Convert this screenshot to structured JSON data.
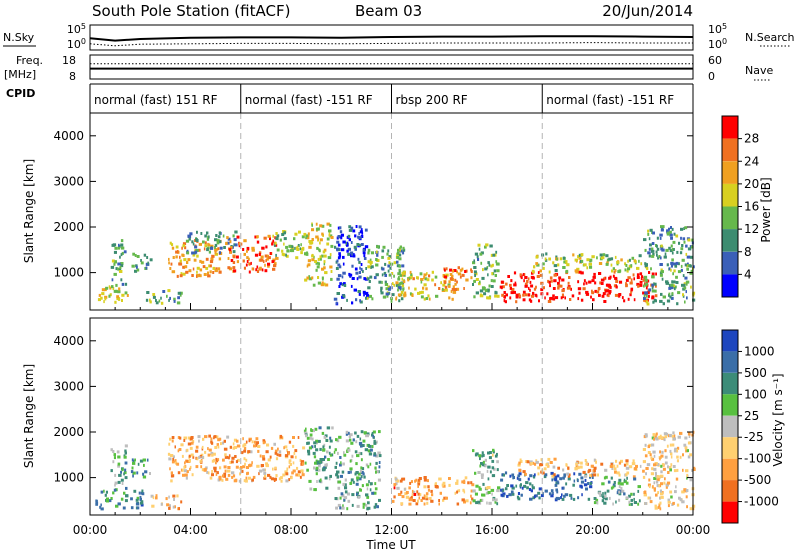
{
  "header": {
    "station": "South Pole Station (fitACF)",
    "beam": "Beam 03",
    "date": "20/Jun/2014"
  },
  "strip_labels": {
    "nsky": "N.Sky",
    "freq": "Freq.",
    "freq_unit": "[MHz]",
    "cpid": "CPID",
    "nsearch": "N.Search",
    "nave": "Nave"
  },
  "chart_data": [
    {
      "type": "line",
      "panel": "noise",
      "y_left_ticks": [
        "10^5",
        "10^0"
      ],
      "y_right_ticks": [
        "10^5",
        "10^0"
      ],
      "series": [
        {
          "name": "N.Sky",
          "style": "solid",
          "x": [
            0,
            1,
            2,
            4,
            6,
            8,
            10,
            12,
            14,
            16,
            18,
            20,
            22,
            24
          ],
          "y": [
            2.2,
            1.6,
            2.0,
            2.3,
            2.4,
            2.4,
            2.3,
            2.5,
            2.6,
            2.6,
            2.7,
            2.7,
            2.6,
            2.5
          ]
        },
        {
          "name": "N.Search",
          "style": "dotted",
          "x": [
            0,
            1,
            2,
            4,
            6,
            8,
            10,
            12,
            14,
            16,
            18,
            20,
            22,
            24
          ],
          "y": [
            0.8,
            0.3,
            0.7,
            0.8,
            0.9,
            0.9,
            0.8,
            0.9,
            1.0,
            1.0,
            1.0,
            1.1,
            1.0,
            1.0
          ]
        }
      ]
    },
    {
      "type": "line",
      "panel": "frequency",
      "y_left_ticks": [
        "18",
        "8"
      ],
      "y_right_ticks": [
        "60",
        "0"
      ],
      "series": [
        {
          "name": "Freq.",
          "style": "solid",
          "x": [
            0,
            24
          ],
          "y": [
            12.2,
            12.2
          ]
        },
        {
          "name": "Nave",
          "style": "dotted",
          "x": [
            0,
            24
          ],
          "y": [
            40,
            40
          ]
        }
      ]
    },
    {
      "type": "table",
      "panel": "cpid",
      "segments": [
        {
          "start": 0,
          "end": 6,
          "label": "normal (fast) 151 RF"
        },
        {
          "start": 6,
          "end": 12,
          "label": "normal (fast) -151 RF"
        },
        {
          "start": 12,
          "end": 18,
          "label": "rbsp 200 RF"
        },
        {
          "start": 18,
          "end": 24,
          "label": "normal (fast) -151 RF"
        }
      ]
    },
    {
      "type": "heatmap",
      "panel": "power",
      "ylabel": "Slant Range [km]",
      "ylim": [
        180,
        4500
      ],
      "yticks": [
        1000,
        2000,
        3000,
        4000
      ],
      "colorbar": {
        "label": "Power [dB]",
        "ticks": [
          "4",
          "8",
          "12",
          "16",
          "20",
          "24",
          "28"
        ],
        "colors": [
          "#0000ff",
          "#3a5fb8",
          "#3c8c70",
          "#66b84c",
          "#d8d020",
          "#f0a020",
          "#f07020",
          "#ff0000"
        ]
      },
      "regions": [
        {
          "t0": 0.2,
          "t1": 1.5,
          "r0": 300,
          "r1": 700,
          "level": 0.55
        },
        {
          "t0": 0.8,
          "t1": 1.4,
          "r0": 700,
          "r1": 1700,
          "level": 0.35
        },
        {
          "t0": 1.6,
          "t1": 2.4,
          "r0": 1000,
          "r1": 1400,
          "level": 0.35
        },
        {
          "t0": 2.2,
          "t1": 3.6,
          "r0": 300,
          "r1": 600,
          "level": 0.4
        },
        {
          "t0": 3.1,
          "t1": 5.2,
          "r0": 900,
          "r1": 1700,
          "level": 0.7
        },
        {
          "t0": 3.8,
          "t1": 5.8,
          "r0": 1400,
          "r1": 1900,
          "level": 0.3
        },
        {
          "t0": 5.3,
          "t1": 7.4,
          "r0": 1000,
          "r1": 1800,
          "level": 0.82
        },
        {
          "t0": 7.2,
          "t1": 8.5,
          "r0": 1300,
          "r1": 1950,
          "level": 0.45
        },
        {
          "t0": 8.5,
          "t1": 9.6,
          "r0": 700,
          "r1": 2100,
          "level": 0.55
        },
        {
          "t0": 9.7,
          "t1": 11.0,
          "r0": 300,
          "r1": 2000,
          "level": 0.15
        },
        {
          "t0": 11.0,
          "t1": 12.5,
          "r0": 300,
          "r1": 1600,
          "level": 0.35
        },
        {
          "t0": 12.0,
          "t1": 14.5,
          "r0": 400,
          "r1": 1000,
          "level": 0.6
        },
        {
          "t0": 14.0,
          "t1": 15.2,
          "r0": 600,
          "r1": 1100,
          "level": 0.8
        },
        {
          "t0": 15.2,
          "t1": 16.2,
          "r0": 400,
          "r1": 1600,
          "level": 0.4
        },
        {
          "t0": 16.3,
          "t1": 22.5,
          "r0": 350,
          "r1": 1000,
          "level": 0.95
        },
        {
          "t0": 17.5,
          "t1": 22.0,
          "r0": 1000,
          "r1": 1400,
          "level": 0.5
        },
        {
          "t0": 22.0,
          "t1": 24.0,
          "r0": 300,
          "r1": 2000,
          "level": 0.35
        }
      ]
    },
    {
      "type": "heatmap",
      "panel": "velocity",
      "ylabel": "Slant Range [km]",
      "xlabel": "Time UT",
      "ylim": [
        180,
        4500
      ],
      "yticks": [
        1000,
        2000,
        3000,
        4000
      ],
      "x_ticks": [
        "00:00",
        "04:00",
        "08:00",
        "12:00",
        "16:00",
        "20:00",
        "00:00"
      ],
      "colorbar": {
        "label": "Velocity [m s⁻¹]",
        "ticks": [
          "1000",
          "500",
          "100",
          "25",
          "-25",
          "-100",
          "-500",
          "-1000"
        ],
        "colors": [
          "#1e46be",
          "#3a6ea8",
          "#3c8c78",
          "#58c040",
          "#bebebe",
          "#ffd070",
          "#ffa040",
          "#f07020",
          "#ff0000"
        ]
      },
      "regions": [
        {
          "t0": 0.2,
          "t1": 2.2,
          "r0": 300,
          "r1": 700,
          "level": 0.25
        },
        {
          "t0": 0.8,
          "t1": 1.4,
          "r0": 700,
          "r1": 1700,
          "level": 0.35
        },
        {
          "t0": 1.6,
          "t1": 2.4,
          "r0": 1000,
          "r1": 1400,
          "level": 0.3
        },
        {
          "t0": 2.4,
          "t1": 3.6,
          "r0": 300,
          "r1": 600,
          "level": 0.65
        },
        {
          "t0": 3.1,
          "t1": 8.5,
          "r0": 900,
          "r1": 1900,
          "level": 0.7
        },
        {
          "t0": 8.5,
          "t1": 9.6,
          "r0": 700,
          "r1": 2100,
          "level": 0.35
        },
        {
          "t0": 9.7,
          "t1": 11.5,
          "r0": 300,
          "r1": 2000,
          "level": 0.35
        },
        {
          "t0": 12.0,
          "t1": 15.2,
          "r0": 400,
          "r1": 1000,
          "level": 0.72
        },
        {
          "t0": 15.2,
          "t1": 16.2,
          "r0": 400,
          "r1": 1600,
          "level": 0.4
        },
        {
          "t0": 16.3,
          "t1": 20.0,
          "r0": 500,
          "r1": 1100,
          "level": 0.15
        },
        {
          "t0": 17.0,
          "t1": 22.0,
          "r0": 1000,
          "r1": 1400,
          "level": 0.68
        },
        {
          "t0": 20.0,
          "t1": 22.0,
          "r0": 400,
          "r1": 1000,
          "level": 0.35
        },
        {
          "t0": 22.0,
          "t1": 24.0,
          "r0": 300,
          "r1": 2000,
          "level": 0.6
        }
      ]
    }
  ]
}
